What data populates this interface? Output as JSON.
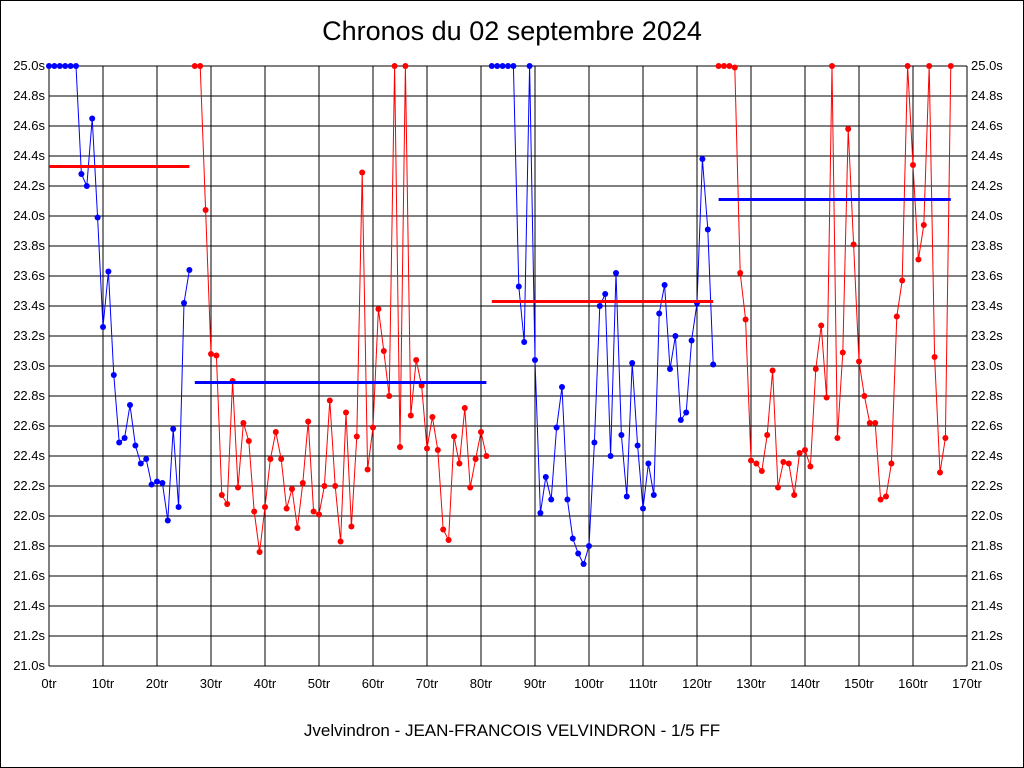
{
  "chart_data": {
    "type": "line",
    "title": "Chronos du 02 septembre 2024",
    "footer": "Jvelvindron - JEAN-FRANCOIS VELVINDRON - 1/5 FF",
    "ylim": [
      21.0,
      25.0
    ],
    "xlim": [
      0,
      170
    ],
    "yticks": [
      "21.0s",
      "21.2s",
      "21.4s",
      "21.6s",
      "21.8s",
      "22.0s",
      "22.2s",
      "22.4s",
      "22.6s",
      "22.8s",
      "23.0s",
      "23.2s",
      "23.4s",
      "23.6s",
      "23.8s",
      "24.0s",
      "24.2s",
      "24.4s",
      "24.6s",
      "24.8s",
      "25.0s"
    ],
    "xticks": [
      "0tr",
      "10tr",
      "20tr",
      "30tr",
      "40tr",
      "50tr",
      "60tr",
      "70tr",
      "80tr",
      "90tr",
      "100tr",
      "110tr",
      "120tr",
      "130tr",
      "140tr",
      "150tr",
      "160tr",
      "170tr"
    ],
    "grid": true,
    "series": [
      {
        "color": "#0000ff",
        "x": [
          0,
          1,
          2,
          3,
          4,
          5,
          6,
          7,
          8,
          9,
          10,
          11,
          12,
          13,
          14,
          15,
          16,
          17,
          18,
          19,
          20,
          21,
          22,
          23,
          24,
          25,
          26
        ],
        "y": [
          25.0,
          25.0,
          25.0,
          25.0,
          25.0,
          25.0,
          24.28,
          24.2,
          24.65,
          23.99,
          23.26,
          23.63,
          22.94,
          22.49,
          22.52,
          22.74,
          22.47,
          22.35,
          22.38,
          22.21,
          22.23,
          22.22,
          21.97,
          22.58,
          22.06,
          23.42,
          23.64
        ]
      },
      {
        "color": "#ff0000",
        "x": [
          27,
          28,
          29,
          30,
          31,
          32,
          33,
          34,
          35,
          36,
          37,
          38,
          39,
          40,
          41,
          42,
          43,
          44,
          45,
          46,
          47,
          48,
          49,
          50,
          51,
          52,
          53,
          54,
          55,
          56,
          57,
          58,
          59,
          60,
          61,
          62,
          63,
          64,
          65,
          66,
          67,
          68,
          69,
          70,
          71,
          72,
          73,
          74,
          75,
          76,
          77,
          78,
          79,
          80,
          81
        ],
        "y": [
          25.0,
          25.0,
          24.04,
          23.08,
          23.07,
          22.14,
          22.08,
          22.9,
          22.19,
          22.62,
          22.5,
          22.03,
          21.76,
          22.06,
          22.38,
          22.56,
          22.38,
          22.05,
          22.18,
          21.92,
          22.22,
          22.63,
          22.03,
          22.01,
          22.2,
          22.77,
          22.2,
          21.83,
          22.69,
          21.93,
          22.53,
          24.29,
          22.31,
          22.59,
          23.38,
          23.1,
          22.8,
          25.0,
          22.46,
          25.0,
          22.67,
          23.04,
          22.87,
          22.45,
          22.66,
          22.44,
          21.91,
          21.84,
          22.53,
          22.35,
          22.72,
          22.19,
          22.38,
          22.56,
          22.4
        ]
      },
      {
        "color": "#0000ff",
        "x": [
          82,
          83,
          84,
          85,
          86,
          87,
          88,
          89,
          90,
          91,
          92,
          93,
          94,
          95,
          96,
          97,
          98,
          99,
          100,
          101,
          102,
          103,
          104,
          105,
          106,
          107,
          108,
          109,
          110,
          111,
          112,
          113,
          114,
          115,
          116,
          117,
          118,
          119,
          120,
          121,
          122,
          123
        ],
        "y": [
          25.0,
          25.0,
          25.0,
          25.0,
          25.0,
          23.53,
          23.16,
          25.0,
          23.04,
          22.02,
          22.26,
          22.11,
          22.59,
          22.86,
          22.11,
          21.85,
          21.75,
          21.68,
          21.8,
          22.49,
          23.4,
          23.48,
          22.4,
          23.62,
          22.54,
          22.13,
          23.02,
          22.47,
          22.05,
          22.35,
          22.14,
          23.35,
          23.54,
          22.98,
          23.2,
          22.64,
          22.69,
          23.17,
          23.42,
          24.38,
          23.91,
          23.01
        ]
      },
      {
        "color": "#ff0000",
        "x": [
          124,
          125,
          126,
          127,
          128,
          129,
          130,
          131,
          132,
          133,
          134,
          135,
          136,
          137,
          138,
          139,
          140,
          141,
          142,
          143,
          144,
          145,
          146,
          147,
          148,
          149,
          150,
          151,
          152,
          153,
          154,
          155,
          156,
          157,
          158,
          159,
          160,
          161,
          162,
          163,
          164,
          165,
          166,
          167
        ],
        "y": [
          25.0,
          25.0,
          25.0,
          24.99,
          23.62,
          23.31,
          22.37,
          22.35,
          22.3,
          22.54,
          22.97,
          22.19,
          22.36,
          22.35,
          22.14,
          22.42,
          22.44,
          22.33,
          22.98,
          23.27,
          22.79,
          25.0,
          22.52,
          23.09,
          24.58,
          23.81,
          23.03,
          22.8,
          22.62,
          22.62,
          22.11,
          22.13,
          22.35,
          23.33,
          23.57,
          25.0,
          24.34,
          23.71,
          23.94,
          25.0,
          23.06,
          22.29,
          22.52,
          25.0
        ]
      }
    ],
    "averages": [
      {
        "color": "#ff0000",
        "x": [
          0,
          26
        ],
        "y": 24.33
      },
      {
        "color": "#0000ff",
        "x": [
          27,
          81
        ],
        "y": 22.89
      },
      {
        "color": "#ff0000",
        "x": [
          82,
          123
        ],
        "y": 23.43
      },
      {
        "color": "#0000ff",
        "x": [
          124,
          167
        ],
        "y": 24.11
      }
    ]
  }
}
